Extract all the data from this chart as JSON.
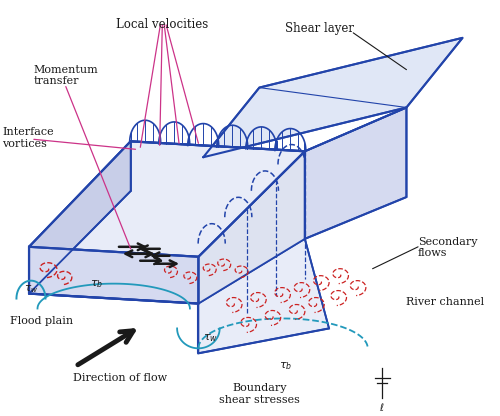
{
  "bg_color": "#ffffff",
  "colors": {
    "blue": "#2244aa",
    "blue_light": "#4466cc",
    "black": "#1a1a1a",
    "vortex_red": "#cc2222",
    "cyan": "#2299bb",
    "pink": "#cc3388",
    "fill_light": "#e8ecf8",
    "fill_medium": "#d5daf0",
    "fill_dark": "#c8cee8"
  },
  "labels": {
    "local_velocities": "Local velocities",
    "momentum_transfer": "Momentum\ntransfer",
    "interface_vortices": "Interface\nvortices",
    "shear_layer": "Shear layer",
    "secondary_flows": "Secondary\nflows",
    "river_channel": "River channel",
    "flood_plain": "Flood plain",
    "direction_of_flow": "Direction of flow",
    "boundary_shear_stresses": "Boundary\nshear stresses"
  }
}
